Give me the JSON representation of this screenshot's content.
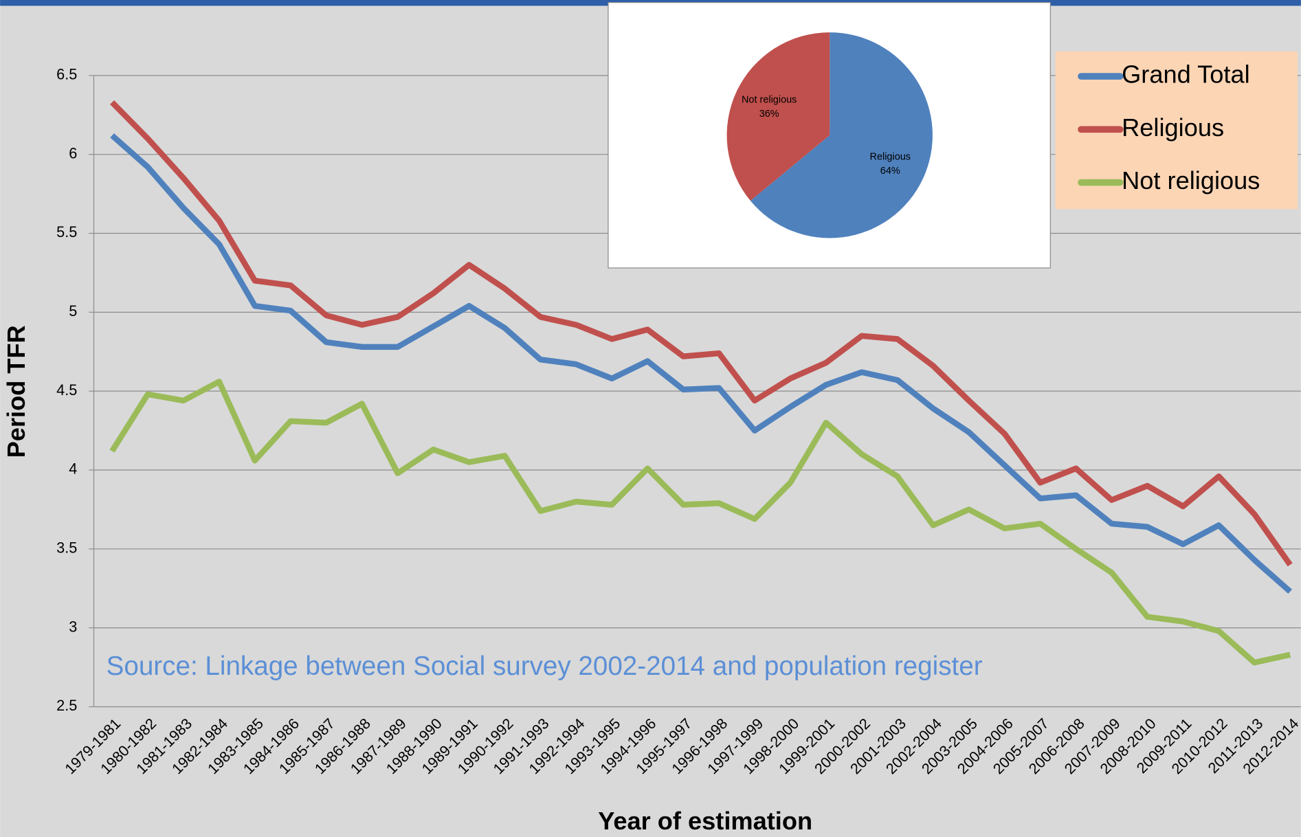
{
  "chart_data": [
    {
      "type": "line",
      "x_label": "Year of estimation",
      "y_label": "Period TFR",
      "annotation": "Source: Linkage between Social survey  2002-2014 and population register",
      "categories": [
        "1979-1981",
        "1980-1982",
        "1981-1983",
        "1982-1984",
        "1983-1985",
        "1984-1986",
        "1985-1987",
        "1986-1988",
        "1987-1989",
        "1988-1990",
        "1989-1991",
        "1990-1992",
        "1991-1993",
        "1992-1994",
        "1993-1995",
        "1994-1996",
        "1995-1997",
        "1996-1998",
        "1997-1999",
        "1998-2000",
        "1999-2001",
        "2000-2002",
        "2001-2003",
        "2002-2004",
        "2003-2005",
        "2004-2006",
        "2005-2007",
        "2006-2008",
        "2007-2009",
        "2008-2010",
        "2009-2011",
        "2010-2012",
        "2011-2013",
        "2012-2014"
      ],
      "series": [
        {
          "name": "Grand Total",
          "color": "#4f81bd",
          "values": [
            6.12,
            5.92,
            5.66,
            5.43,
            5.04,
            5.01,
            4.81,
            4.78,
            4.78,
            4.91,
            5.04,
            4.9,
            4.7,
            4.67,
            4.58,
            4.69,
            4.51,
            4.52,
            4.25,
            4.4,
            4.54,
            4.62,
            4.57,
            4.39,
            4.24,
            4.03,
            3.82,
            3.84,
            3.66,
            3.64,
            3.53,
            3.65,
            3.43,
            3.23
          ]
        },
        {
          "name": "Religious",
          "color": "#c0504d",
          "values": [
            6.33,
            6.1,
            5.85,
            5.58,
            5.2,
            5.17,
            4.98,
            4.92,
            4.97,
            5.12,
            5.3,
            5.15,
            4.97,
            4.92,
            4.83,
            4.89,
            4.72,
            4.74,
            4.44,
            4.58,
            4.68,
            4.85,
            4.83,
            4.66,
            4.44,
            4.23,
            3.92,
            4.01,
            3.81,
            3.9,
            3.77,
            3.96,
            3.72,
            3.4
          ]
        },
        {
          "name": "Not religious",
          "color": "#9bbb59",
          "values": [
            4.12,
            4.48,
            4.44,
            4.56,
            4.06,
            4.31,
            4.3,
            4.42,
            3.98,
            4.13,
            4.05,
            4.09,
            3.74,
            3.8,
            3.78,
            4.01,
            3.78,
            3.79,
            3.69,
            3.92,
            4.3,
            4.1,
            3.96,
            3.65,
            3.75,
            3.63,
            3.66,
            3.5,
            3.35,
            3.07,
            3.04,
            2.98,
            2.78,
            2.83
          ]
        }
      ],
      "ylim": [
        2.5,
        6.5
      ],
      "yticks": [
        2.5,
        3,
        3.5,
        4,
        4.5,
        5,
        5.5,
        6,
        6.5
      ],
      "grid": true,
      "legend": "upper right"
    },
    {
      "type": "pie",
      "categories": [
        "Religious",
        "Not religious"
      ],
      "values": [
        64,
        36
      ],
      "value_labels": [
        "64%",
        "36%"
      ],
      "colors": [
        "#4f81bd",
        "#c0504d"
      ]
    }
  ]
}
